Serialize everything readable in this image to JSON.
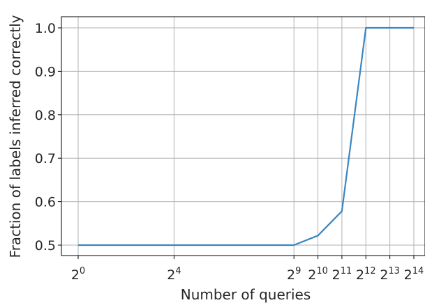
{
  "chart_data": {
    "type": "line",
    "title": "",
    "xlabel": "Number of queries",
    "ylabel": "Fraction of labels inferred correctly",
    "x_scale": "log2",
    "x_ticks": [
      {
        "value": 1,
        "base": "2",
        "exp": "0"
      },
      {
        "value": 16,
        "base": "2",
        "exp": "4"
      },
      {
        "value": 512,
        "base": "2",
        "exp": "9"
      },
      {
        "value": 1024,
        "base": "2",
        "exp": "10"
      },
      {
        "value": 2048,
        "base": "2",
        "exp": "11"
      },
      {
        "value": 4096,
        "base": "2",
        "exp": "12"
      },
      {
        "value": 8192,
        "base": "2",
        "exp": "13"
      },
      {
        "value": 16384,
        "base": "2",
        "exp": "14"
      }
    ],
    "y_ticks": [
      "0.5",
      "0.6",
      "0.7",
      "0.8",
      "0.9",
      "1.0"
    ],
    "xlim": [
      1,
      16384
    ],
    "ylim": [
      0.5,
      1.0
    ],
    "grid": true,
    "series": [
      {
        "color": "#3a86c0",
        "x": [
          1,
          512,
          1024,
          2048,
          4096,
          8192,
          16384
        ],
        "y": [
          0.5,
          0.5,
          0.522,
          0.578,
          1.0,
          1.0,
          1.0
        ]
      }
    ]
  }
}
